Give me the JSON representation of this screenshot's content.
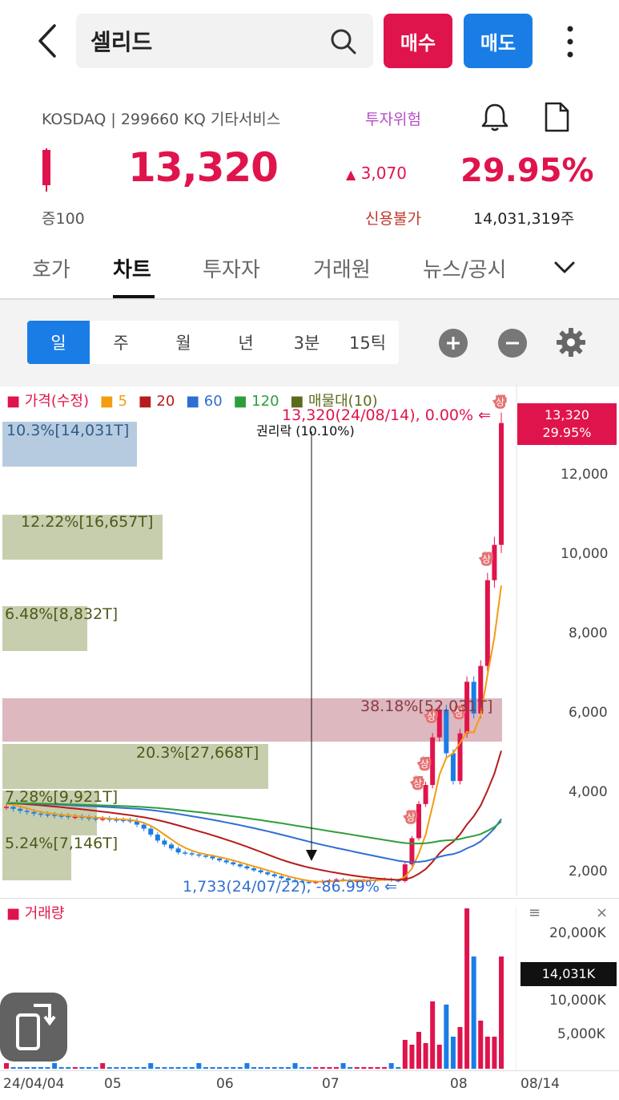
{
  "header": {
    "stock_name": "셀리드",
    "buy_label": "매수",
    "sell_label": "매도"
  },
  "info": {
    "market": "KOSDAQ | 299660 KQ 기타서비스",
    "risk_badge": "투자위험",
    "price": "13,320",
    "change": "3,070",
    "change_pct": "29.95%",
    "lot": "증100",
    "credit": "신용불가",
    "shares": "14,031,319주"
  },
  "tabs": [
    {
      "label": "호가"
    },
    {
      "label": "차트"
    },
    {
      "label": "투자자"
    },
    {
      "label": "거래원"
    },
    {
      "label": "뉴스/공시"
    }
  ],
  "periods": [
    "일",
    "주",
    "월",
    "년",
    "3분",
    "15틱"
  ],
  "legend": {
    "price": "가격(수정)",
    "ma5": "5",
    "ma20": "20",
    "ma60": "60",
    "ma120": "120",
    "volume_profile": "매물대(10)"
  },
  "colors": {
    "up": "#e0144c",
    "down": "#1a7de6",
    "ma5": "#f39c12",
    "ma20": "#b71c1c",
    "ma60": "#2f6fd1",
    "ma120": "#2e9e3a",
    "profile": "#5a6b1c"
  },
  "chart_data": {
    "type": "candlestick",
    "x_ticks": [
      "24/04/04",
      "05",
      "06",
      "07",
      "08",
      "08/14"
    ],
    "y_ticks": [
      2000,
      4000,
      6000,
      8000,
      10000,
      12000
    ],
    "y_range": [
      1200,
      14000
    ],
    "current": {
      "price": "13,320",
      "pct": "29.95%"
    },
    "annotations": {
      "high": "13,320(24/08/14), 0.00%",
      "low": "1,733(24/07/22), -86.99%",
      "event": "권리락 (10.10%)",
      "limit_up": "상"
    },
    "closes": [
      3650,
      3600,
      3550,
      3520,
      3480,
      3460,
      3450,
      3430,
      3420,
      3400,
      3400,
      3380,
      3360,
      3350,
      3350,
      3330,
      3320,
      3310,
      3300,
      3200,
      3100,
      2950,
      2800,
      2700,
      2600,
      2500,
      2480,
      2450,
      2420,
      2400,
      2350,
      2300,
      2250,
      2200,
      2150,
      2100,
      2050,
      2000,
      1950,
      1900,
      1850,
      1800,
      1780,
      1760,
      1740,
      1760,
      1780,
      1800,
      1820,
      1800,
      1780,
      1790,
      1800,
      1810,
      1820,
      1830,
      1800,
      1780,
      2200,
      2860,
      3720,
      4200,
      5400,
      6100,
      5000,
      4300,
      5500,
      6800,
      6000,
      7200,
      9360,
      10250,
      13320
    ],
    "volume_profile": [
      {
        "label": "10.3%[14,031T]",
        "pct": 10.3
      },
      {
        "label": "12.22%[16,657T]",
        "pct": 12.22
      },
      {
        "label": "6.48%[8,832T]",
        "pct": 6.48
      },
      {
        "label": "38.18%[52,031T]",
        "pct": 38.18
      },
      {
        "label": "20.3%[27,668T]",
        "pct": 20.3
      },
      {
        "label": "7.28%[9,921T]",
        "pct": 7.28
      },
      {
        "label": "5.24%[7,146T]",
        "pct": 5.24
      }
    ],
    "volume": {
      "title": "거래량",
      "y_ticks": [
        "20,000K",
        "10,000K",
        "5,000K"
      ],
      "current": "14,031K"
    }
  }
}
